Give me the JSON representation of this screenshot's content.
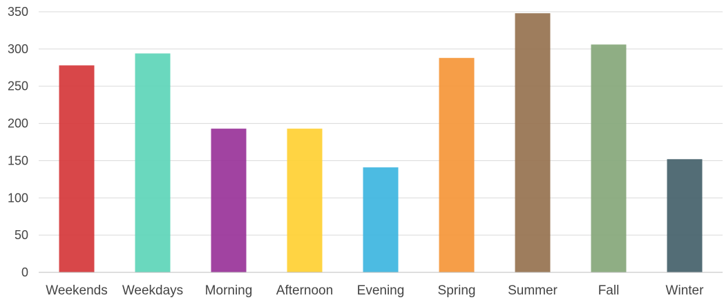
{
  "chart_data": {
    "type": "bar",
    "title": "",
    "xlabel": "",
    "ylabel": "",
    "ylim": [
      0,
      350
    ],
    "yticks": [
      0,
      50,
      100,
      150,
      200,
      250,
      300,
      350
    ],
    "grid": true,
    "categories": [
      "Weekends",
      "Weekdays",
      "Morning",
      "Afternoon",
      "Evening",
      "Spring",
      "Summer",
      "Fall",
      "Winter"
    ],
    "values": [
      278,
      294,
      193,
      193,
      141,
      288,
      348,
      306,
      152
    ],
    "colors": [
      "#d5373a",
      "#5dd5b8",
      "#993399",
      "#ffd033",
      "#3db5e0",
      "#f59638",
      "#96724f",
      "#85a779",
      "#44616a"
    ]
  }
}
